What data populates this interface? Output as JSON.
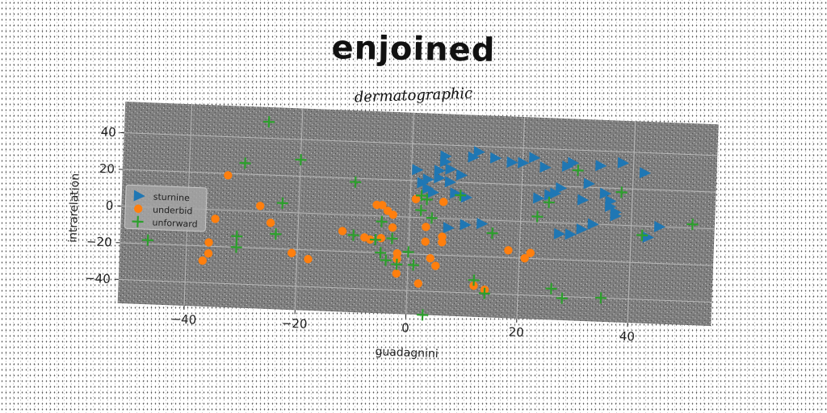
{
  "chart_data": {
    "type": "scatter",
    "title": "enjoined",
    "subtitle": "dermatographic",
    "xlabel": "guadagnini",
    "ylabel": "intrarelation",
    "xlim": [
      -52,
      55
    ],
    "ylim": [
      -53,
      57
    ],
    "xticks": [
      -40,
      -20,
      0,
      20,
      40
    ],
    "yticks": [
      -40,
      -20,
      0,
      20,
      40
    ],
    "grid": true,
    "legend_position": "center-left",
    "series": [
      {
        "name": "sturnine",
        "marker": "triangle-right",
        "color": "#1f77b4",
        "points": [
          [
            1,
            26
          ],
          [
            2,
            19
          ],
          [
            3,
            16
          ],
          [
            3,
            21
          ],
          [
            4,
            14
          ],
          [
            5,
            22
          ],
          [
            5,
            26
          ],
          [
            6,
            31
          ],
          [
            6,
            34
          ],
          [
            7,
            27
          ],
          [
            7,
            20
          ],
          [
            8,
            14
          ],
          [
            9,
            24
          ],
          [
            10,
            12
          ],
          [
            11,
            34
          ],
          [
            12,
            37
          ],
          [
            15,
            34
          ],
          [
            18,
            32
          ],
          [
            20,
            32
          ],
          [
            22,
            35
          ],
          [
            23,
            13
          ],
          [
            24,
            30
          ],
          [
            25,
            15
          ],
          [
            26,
            16
          ],
          [
            27,
            19
          ],
          [
            28,
            31
          ],
          [
            29,
            33
          ],
          [
            31,
            13
          ],
          [
            32,
            22
          ],
          [
            34,
            32
          ],
          [
            35,
            17
          ],
          [
            36,
            13
          ],
          [
            36,
            10
          ],
          [
            37,
            7
          ],
          [
            37,
            5
          ],
          [
            38,
            34
          ],
          [
            42,
            29
          ],
          [
            45,
            0
          ],
          [
            43,
            -6
          ],
          [
            27,
            -6
          ],
          [
            29,
            -6
          ],
          [
            31,
            -3
          ],
          [
            33,
            0
          ],
          [
            13,
            -2
          ],
          [
            10,
            -3
          ],
          [
            7,
            -5
          ]
        ]
      },
      {
        "name": "underbid",
        "marker": "circle",
        "color": "#ff7f0e",
        "points": [
          [
            -33,
            19
          ],
          [
            -35,
            -5
          ],
          [
            -36,
            -18
          ],
          [
            -36,
            -24
          ],
          [
            -37,
            -28
          ],
          [
            -27,
            3
          ],
          [
            -25,
            -6
          ],
          [
            -21,
            -22
          ],
          [
            -18,
            -25
          ],
          [
            -12,
            -9
          ],
          [
            -8,
            -12
          ],
          [
            -7,
            -13
          ],
          [
            -6,
            6
          ],
          [
            -5,
            6
          ],
          [
            -4,
            3
          ],
          [
            -3,
            1
          ],
          [
            -3,
            -6
          ],
          [
            -2,
            -20
          ],
          [
            -2,
            -23
          ],
          [
            -2,
            -31
          ],
          [
            1,
            10
          ],
          [
            2,
            -36
          ],
          [
            3,
            -5
          ],
          [
            3,
            -13
          ],
          [
            4,
            -22
          ],
          [
            5,
            -26
          ],
          [
            6,
            -10
          ],
          [
            6,
            -13
          ],
          [
            6,
            9
          ],
          [
            12,
            -36
          ],
          [
            14,
            -38
          ],
          [
            18,
            -16
          ],
          [
            21,
            -20
          ],
          [
            22,
            -17
          ],
          [
            -5,
            -12
          ]
        ]
      },
      {
        "name": "unforward",
        "marker": "plus",
        "color": "#2ca02c",
        "points": [
          [
            -26,
            49
          ],
          [
            -20,
            29
          ],
          [
            -30,
            26
          ],
          [
            -23,
            5
          ],
          [
            -24,
            -12
          ],
          [
            -31,
            -14
          ],
          [
            -31,
            -20
          ],
          [
            -47,
            -18
          ],
          [
            -10,
            18
          ],
          [
            -10,
            -11
          ],
          [
            -5,
            -20
          ],
          [
            -6,
            -13
          ],
          [
            -5,
            -3
          ],
          [
            -4,
            -24
          ],
          [
            -2,
            -26
          ],
          [
            0,
            -19
          ],
          [
            1,
            -26
          ],
          [
            2,
            4
          ],
          [
            3,
            10
          ],
          [
            4,
            0
          ],
          [
            3,
            -53
          ],
          [
            9,
            13
          ],
          [
            12,
            -33
          ],
          [
            14,
            -40
          ],
          [
            15,
            -7
          ],
          [
            23,
            3
          ],
          [
            25,
            11
          ],
          [
            26,
            -36
          ],
          [
            28,
            -41
          ],
          [
            30,
            29
          ],
          [
            35,
            -40
          ],
          [
            38,
            18
          ],
          [
            42,
            -5
          ],
          [
            51,
            2
          ],
          [
            -3,
            -12
          ],
          [
            2,
            12
          ]
        ]
      }
    ]
  }
}
